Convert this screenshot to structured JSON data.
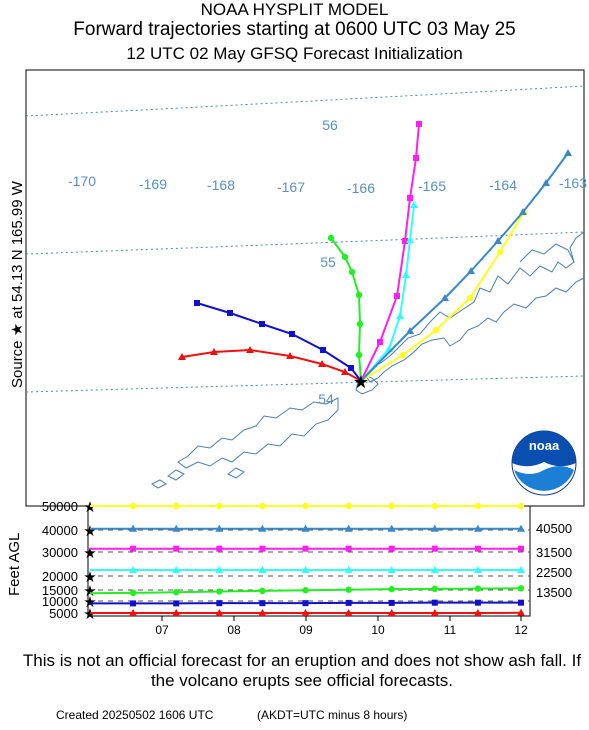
{
  "header": {
    "line1": "NOAA HYSPLIT MODEL",
    "line2": "Forward trajectories starting at 0600 UTC 03 May 25",
    "line3": "12 UTC 02 May    GFSQ  Forecast Initialization"
  },
  "side_labels": {
    "source": "Source ★  at   54.13 N  165.99 W",
    "feet": "Feet AGL"
  },
  "map": {
    "lon_labels": [
      "-170",
      "-169",
      "-168",
      "-167",
      "-166",
      "-165",
      "-164",
      "-163"
    ],
    "lat_labels": [
      "56",
      "55",
      "54"
    ],
    "colors": {
      "graticule": "#4a86b8",
      "coast": "#4a7eb0",
      "red": "#ee1111",
      "blue": "#1111cc",
      "green": "#22ee22",
      "magenta": "#ff22ee",
      "cyan": "#33ffff",
      "yellow": "#ffff22",
      "steelblue": "#3a88c8"
    }
  },
  "logo": {
    "text": "noaa"
  },
  "chart_data": {
    "type": "line",
    "title": "",
    "x_tick_labels": [
      "07",
      "08",
      "09",
      "10",
      "11",
      "12"
    ],
    "ylabel": "Feet AGL",
    "y_tick_labels": [
      "50000",
      "40000",
      "30000",
      "20000",
      "15000",
      "10000",
      "5000"
    ],
    "right_labels": [
      "40500",
      "31500",
      "22500",
      "13500"
    ],
    "series": [
      {
        "color": "yellow",
        "marker": "circle",
        "values": [
          50000,
          50000,
          50000,
          50000,
          50000,
          50000,
          50000,
          50000,
          50000,
          50000,
          50000
        ]
      },
      {
        "color": "steelblue",
        "marker": "triangle",
        "values": [
          40500,
          40500,
          40500,
          40500,
          40500,
          40500,
          40500,
          40500,
          40500,
          40500,
          40500
        ]
      },
      {
        "color": "magenta",
        "marker": "square",
        "values": [
          31500,
          31500,
          31500,
          31500,
          31500,
          31500,
          31500,
          31500,
          31500,
          31500,
          31500
        ]
      },
      {
        "color": "cyan",
        "marker": "triangle",
        "values": [
          22500,
          22500,
          22500,
          22500,
          22500,
          22500,
          22500,
          22500,
          22500,
          22500,
          22500
        ]
      },
      {
        "color": "green",
        "marker": "circle",
        "values": [
          13500,
          13700,
          14000,
          14300,
          14600,
          14900,
          15100,
          15300,
          15400,
          15500,
          15600
        ]
      },
      {
        "color": "blue",
        "marker": "square",
        "values": [
          9000,
          9000,
          9000,
          9100,
          9100,
          9100,
          9200,
          9200,
          9300,
          9300,
          9300
        ]
      },
      {
        "color": "red",
        "marker": "triangle",
        "values": [
          4500,
          4500,
          4500,
          4500,
          4550,
          4600,
          4600,
          4650,
          4700,
          4900,
          5100
        ]
      }
    ]
  },
  "footer": {
    "disclaimer": "This is not an official forecast for an eruption and does not show ash fall. If the volcano erupts see official forecasts.",
    "created": "Created 20250502 1606 UTC",
    "akdt": "(AKDT=UTC minus 8 hours)"
  }
}
